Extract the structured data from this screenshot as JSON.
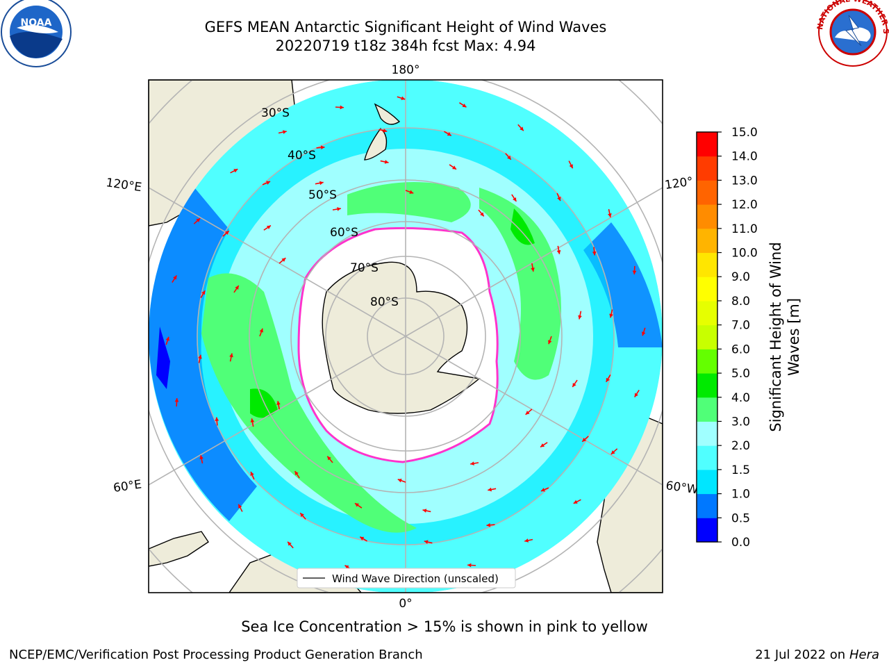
{
  "title": {
    "line1": "GEFS MEAN Antarctic Significant Height of Wind Waves",
    "line2": "20220719 t18z 384h fcst   Max: 4.94"
  },
  "logos": {
    "left": "noara-logo",
    "right_text": "NATIONAL WEATHER SERVICE",
    "left_text": "NOAA"
  },
  "map": {
    "projection": "south-polar-stereographic",
    "longitude_labels": {
      "top": "180°",
      "bottom": "0°",
      "left_upper": "120°E",
      "left_lower": "60°E",
      "right_upper": "120°",
      "right_lower": "60°W"
    },
    "latitude_labels": [
      "30°S",
      "40°S",
      "50°S",
      "60°S",
      "70°S",
      "80°S"
    ],
    "legend": {
      "label": "Wind Wave Direction (unscaled)"
    },
    "colors": {
      "land": "#eeecda",
      "ice": "#ffffff",
      "ice_edge": "#ff33cc",
      "grid": "#b4b4b4",
      "arrow": "#ff0000"
    }
  },
  "colorbar": {
    "label": "Significant Height of Wind Waves [m]",
    "label_line1": "Significant Height of Wind",
    "label_line2": "Waves [m]",
    "ticks": [
      "0.0",
      "0.5",
      "1.0",
      "1.5",
      "2.0",
      "3.0",
      "4.0",
      "5.0",
      "6.0",
      "7.0",
      "8.0",
      "9.0",
      "10.0",
      "11.0",
      "12.0",
      "13.0",
      "14.0",
      "15.0"
    ],
    "colors": [
      "#0000ff",
      "#0078ff",
      "#00e6ff",
      "#50ffff",
      "#a0ffff",
      "#50ff78",
      "#00ea00",
      "#64ff00",
      "#c8ff00",
      "#e6ff00",
      "#ffff00",
      "#ffe600",
      "#ffb400",
      "#ff8c00",
      "#ff6400",
      "#ff3c00",
      "#ff0000"
    ]
  },
  "caption": "Sea Ice Concentration > 15% is shown in pink to yellow",
  "footer": {
    "left": "NCEP/EMC/Verification Post Processing Product Generation Branch",
    "date": "21 Jul 2022 on",
    "host": "Hera"
  }
}
